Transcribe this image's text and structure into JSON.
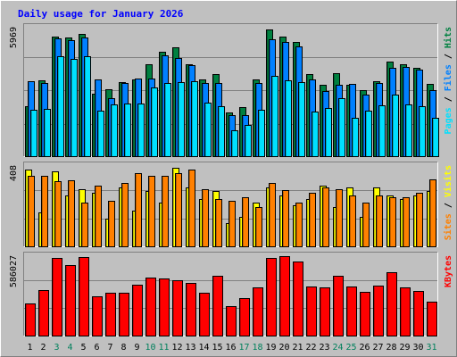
{
  "chart_data": {
    "type": "bar",
    "title": "Daily usage for January 2026",
    "categories": [
      "1",
      "2",
      "3",
      "4",
      "5",
      "6",
      "7",
      "8",
      "9",
      "10",
      "11",
      "12",
      "13",
      "14",
      "15",
      "16",
      "17",
      "18",
      "19",
      "20",
      "21",
      "22",
      "23",
      "24",
      "25",
      "26",
      "27",
      "28",
      "29",
      "30",
      "31"
    ],
    "weekend_days": [
      "3",
      "4",
      "10",
      "11",
      "17",
      "18",
      "24",
      "25",
      "31"
    ],
    "panels": [
      {
        "name": "hits-files-pages",
        "ymax": 5969,
        "ymax_label": "5969",
        "side_labels": [
          "Pages",
          "Files",
          "Hits"
        ],
        "separator": "/",
        "series": [
          {
            "name": "Hits",
            "values": [
              2340,
              3530,
              5570,
              5530,
              5690,
              2910,
              3100,
              3460,
              3560,
              4260,
              4870,
              5060,
              4270,
              3560,
              3800,
              2030,
              2290,
              3560,
              5900,
              5550,
              5310,
              3800,
              3300,
              3850,
              3300,
              3060,
              3470,
              4400,
              4260,
              4100,
              3360
            ]
          },
          {
            "name": "Files",
            "values": [
              3470,
              3400,
              5470,
              5380,
              5520,
              3570,
              2700,
              3400,
              3610,
              3620,
              4690,
              4550,
              4220,
              3400,
              3390,
              1900,
              1890,
              3400,
              5440,
              5310,
              5100,
              3570,
              3030,
              3300,
              3360,
              2860,
              3410,
              4100,
              4130,
              4030,
              3050
            ]
          },
          {
            "name": "Pages",
            "values": [
              2160,
              2210,
              4660,
              4520,
              4640,
              2130,
              2390,
              2460,
              2430,
              3180,
              3380,
              3420,
              3470,
              2480,
              2340,
              1220,
              1460,
              2160,
              3720,
              3520,
              3440,
              2080,
              2230,
              2680,
              1770,
              2120,
              2360,
              2840,
              2410,
              2310,
              1770
            ]
          }
        ]
      },
      {
        "name": "visits-sites",
        "ymax": 408,
        "ymax_label": "408",
        "side_labels": [
          "Sites",
          "Visits"
        ],
        "separator": "/",
        "series": [
          {
            "name": "Visits",
            "values": [
              390,
              170,
              380,
              260,
              290,
              270,
              140,
              300,
              180,
              280,
              220,
              400,
              300,
              240,
              280,
              120,
              150,
              220,
              300,
              260,
              210,
              240,
              310,
              200,
              300,
              150,
              300,
              260,
              240,
              260,
              280
            ]
          },
          {
            "name": "Sites",
            "values": [
              360,
              360,
              330,
              335,
              220,
              310,
              230,
              320,
              370,
              360,
              360,
              370,
              390,
              290,
              240,
              230,
              250,
              200,
              320,
              285,
              220,
              270,
              300,
              290,
              260,
              220,
              260,
              250,
              250,
              270,
              340
            ]
          }
        ]
      },
      {
        "name": "kbytes",
        "ymax": 586027,
        "ymax_label": "586027",
        "side_labels": [
          "KBytes"
        ],
        "separator": "",
        "series": [
          {
            "name": "KBytes",
            "values": [
              235000,
              336000,
              575000,
              518000,
              581000,
              293000,
              316000,
              316000,
              374000,
              431000,
              419000,
              411000,
              389000,
              314000,
              444000,
              218000,
              274000,
              353000,
              573000,
              585000,
              544000,
              364000,
              354000,
              439000,
              364000,
              320000,
              372000,
              465000,
              357000,
              330000,
              253000
            ]
          }
        ]
      }
    ],
    "colors": {
      "Hits": "#008040",
      "Files": "#0080ff",
      "Pages": "#00e0ff",
      "Visits": "#ffff00",
      "Sites": "#ff8000",
      "KBytes": "#ff0000",
      "title": "#0000ff",
      "weekend": "#00805c",
      "weekday": "#000000",
      "separator": "#000000"
    }
  }
}
